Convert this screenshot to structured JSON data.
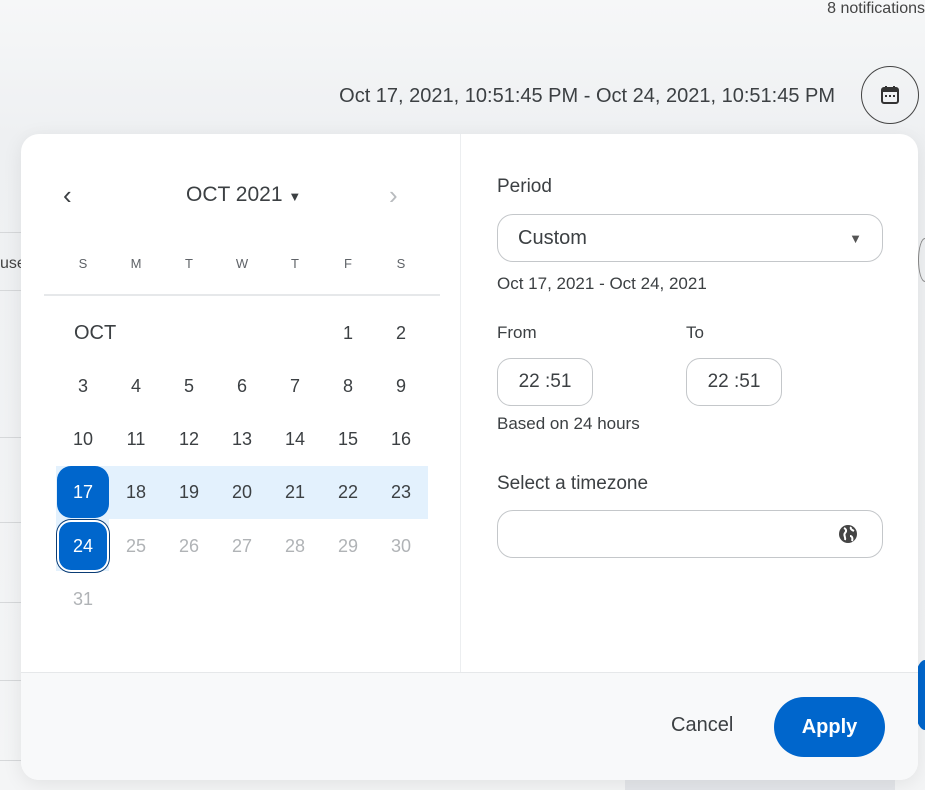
{
  "header": {
    "notifications": "8 notifications",
    "date_range": "Oct 17, 2021, 10:51:45 PM - Oct 24, 2021, 10:51:45 PM",
    "background_partial_text": "use"
  },
  "calendar": {
    "month_label": "OCT 2021",
    "section_label": "OCT",
    "weekdays": [
      "S",
      "M",
      "T",
      "W",
      "T",
      "F",
      "S"
    ],
    "weeks": [
      [
        "",
        "",
        "",
        "",
        "",
        "1",
        "2"
      ],
      [
        "3",
        "4",
        "5",
        "6",
        "7",
        "8",
        "9"
      ],
      [
        "10",
        "11",
        "12",
        "13",
        "14",
        "15",
        "16"
      ],
      [
        "17",
        "18",
        "19",
        "20",
        "21",
        "22",
        "23"
      ],
      [
        "24",
        "25",
        "26",
        "27",
        "28",
        "29",
        "30"
      ],
      [
        "31",
        "",
        "",
        "",
        "",
        "",
        ""
      ]
    ],
    "range_start": "17",
    "range_end": "24",
    "disabled_after": "24"
  },
  "settings": {
    "period_label": "Period",
    "period_value": "Custom",
    "period_range": "Oct 17, 2021 - Oct 24, 2021",
    "from_label": "From",
    "to_label": "To",
    "from_value": "22 :51",
    "to_value": "22 :51",
    "hours_note": "Based on 24 hours",
    "timezone_label": "Select a timezone",
    "timezone_value": ""
  },
  "footer": {
    "cancel": "Cancel",
    "apply": "Apply"
  },
  "colors": {
    "accent": "#0066cc",
    "range": "#e3f1fd"
  }
}
